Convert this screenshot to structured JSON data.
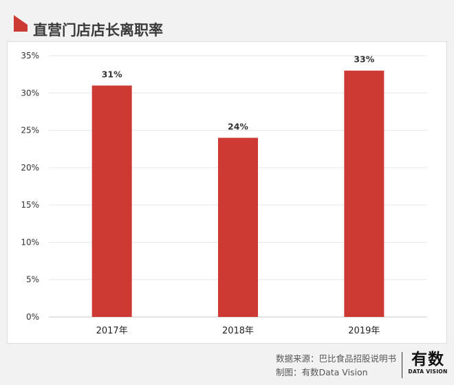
{
  "header": {
    "title": "直营门店店长离职率",
    "accent_color": "#cc3a33",
    "mark_icon": "red-corner-flag-icon"
  },
  "chart_data": {
    "type": "bar",
    "title": "",
    "xlabel": "",
    "ylabel": "",
    "categories": [
      "2017年",
      "2018年",
      "2019年"
    ],
    "values": [
      31,
      24,
      33
    ],
    "value_labels": [
      "31%",
      "24%",
      "33%"
    ],
    "unit": "%",
    "ylim": [
      0,
      35
    ],
    "yticks": [
      0,
      5,
      10,
      15,
      20,
      25,
      30,
      35
    ],
    "ytick_labels": [
      "0%",
      "5%",
      "10%",
      "15%",
      "20%",
      "25%",
      "30%",
      "35%"
    ],
    "grid": true,
    "bar_color": "#cc3a33"
  },
  "footer": {
    "source_line": "数据来源：巴比食品招股说明书",
    "credit_line": "制图：有数Data Vision",
    "logo_cn": "有数",
    "logo_en": "DATA VISION"
  }
}
